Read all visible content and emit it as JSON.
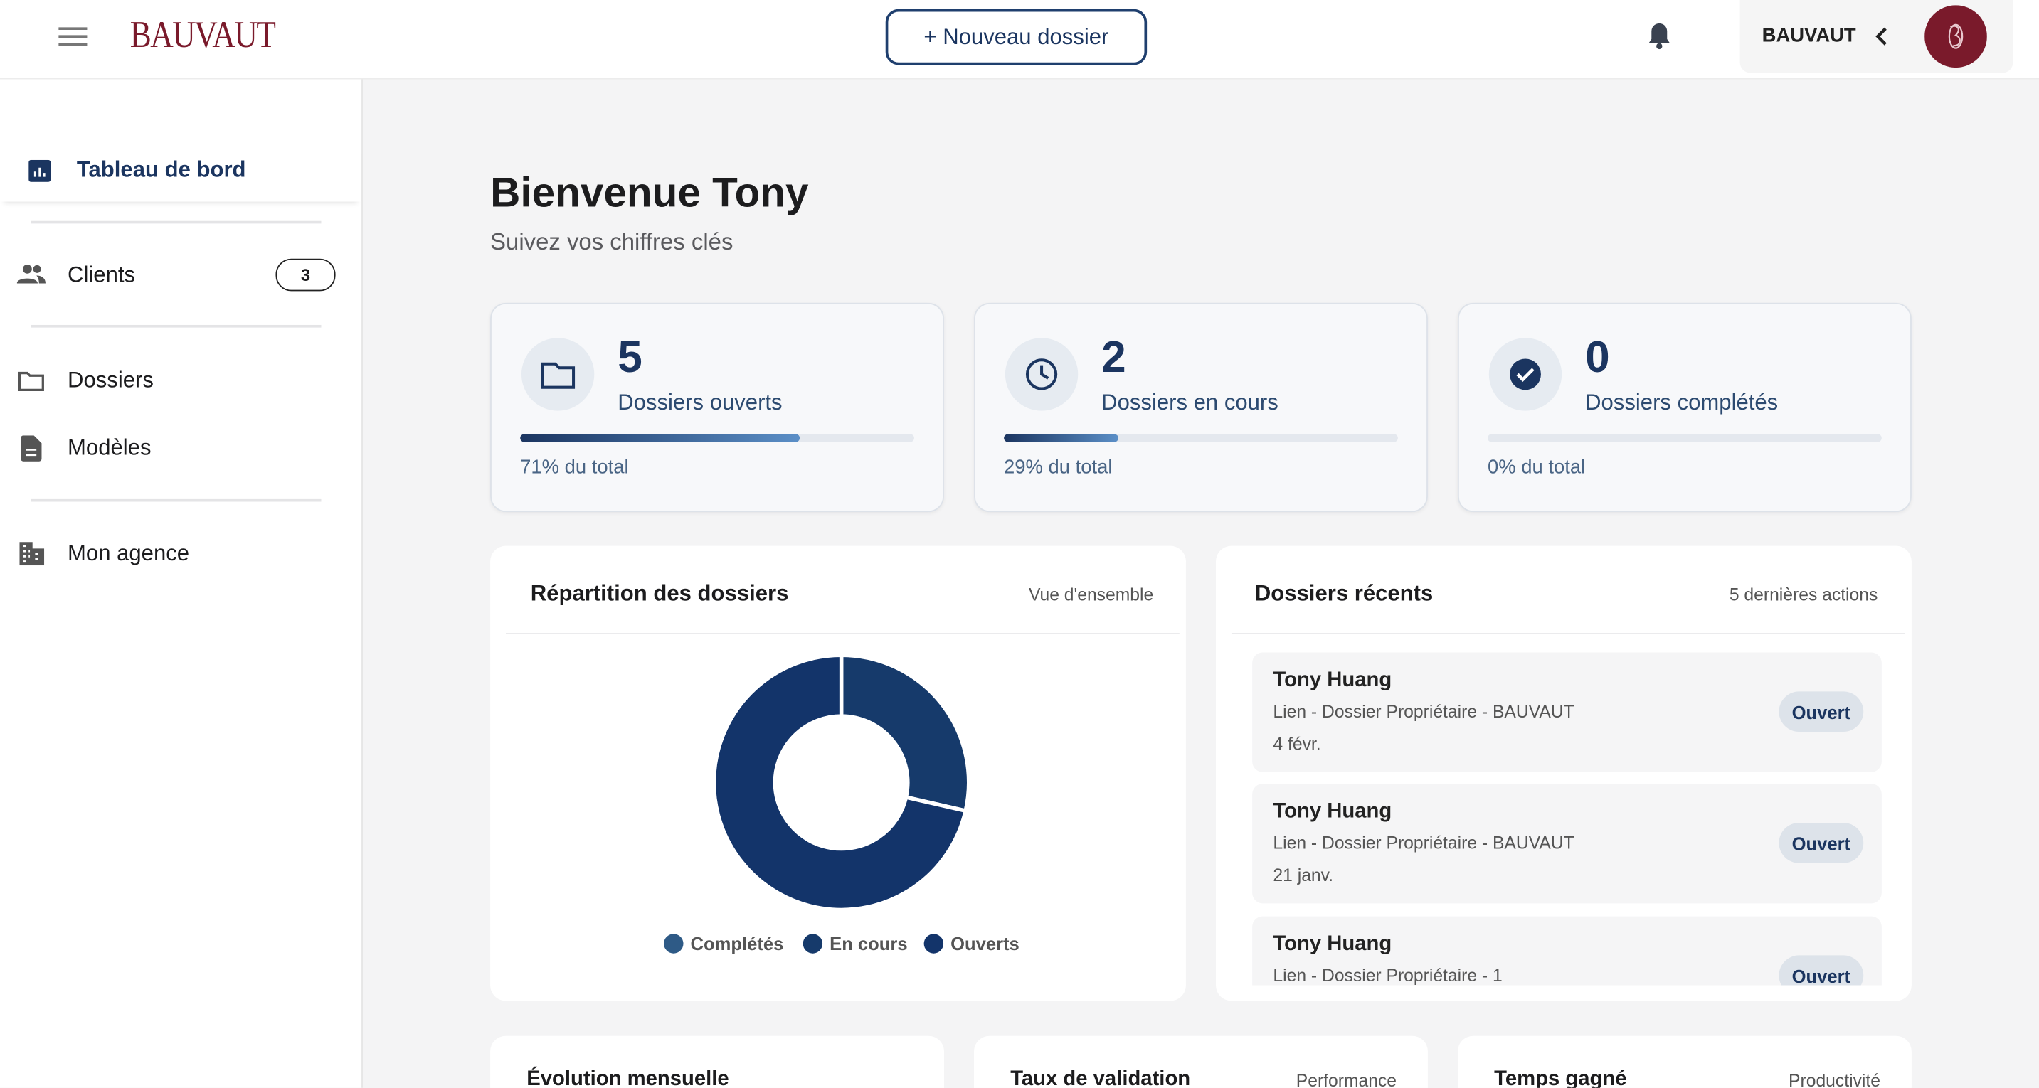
{
  "header": {
    "logo": "BAUVAUT",
    "new_button": "+ Nouveau dossier",
    "account": "BAUVAUT"
  },
  "sidebar": {
    "active": "Tableau de bord",
    "items": [
      {
        "label": "Clients",
        "badge": 3
      },
      {
        "label": "Dossiers"
      },
      {
        "label": "Modèles"
      },
      {
        "label": "Mon agence"
      }
    ]
  },
  "welcome": {
    "title": "Bienvenue Tony",
    "subtitle": "Suivez vos chiffres clés"
  },
  "stats": [
    {
      "value": 5,
      "label": "Dossiers ouverts",
      "percent": 71,
      "percent_label": "71% du total"
    },
    {
      "value": 2,
      "label": "Dossiers en cours",
      "percent": 29,
      "percent_label": "29% du total"
    },
    {
      "value": 0,
      "label": "Dossiers complétés",
      "percent": 0,
      "percent_label": "0% du total"
    }
  ],
  "chart_data": {
    "type": "pie",
    "title": "Répartition des dossiers",
    "subtitle": "Vue d'ensemble",
    "categories": [
      "Complétés",
      "En cours",
      "Ouverts"
    ],
    "values": [
      0,
      2,
      5
    ],
    "colors": [
      "#2e5a86",
      "#163a6b",
      "#13346a"
    ]
  },
  "recent": {
    "title": "Dossiers récents",
    "caption": "5 dernières actions",
    "items": [
      {
        "name": "Tony Huang",
        "subtitle": "Lien - Dossier Propriétaire - BAUVAUT",
        "date": "4 févr.",
        "status": "Ouvert"
      },
      {
        "name": "Tony Huang",
        "subtitle": "Lien - Dossier Propriétaire - BAUVAUT",
        "date": "21 janv.",
        "status": "Ouvert"
      },
      {
        "name": "Tony Huang",
        "subtitle": "Lien - Dossier Propriétaire - 1",
        "status": "Ouvert"
      }
    ]
  },
  "bottom_cards": [
    {
      "title": "Évolution mensuelle"
    },
    {
      "title": "Taux de validation",
      "caption": "Performance"
    },
    {
      "title": "Temps gagné",
      "caption": "Productivité"
    }
  ]
}
